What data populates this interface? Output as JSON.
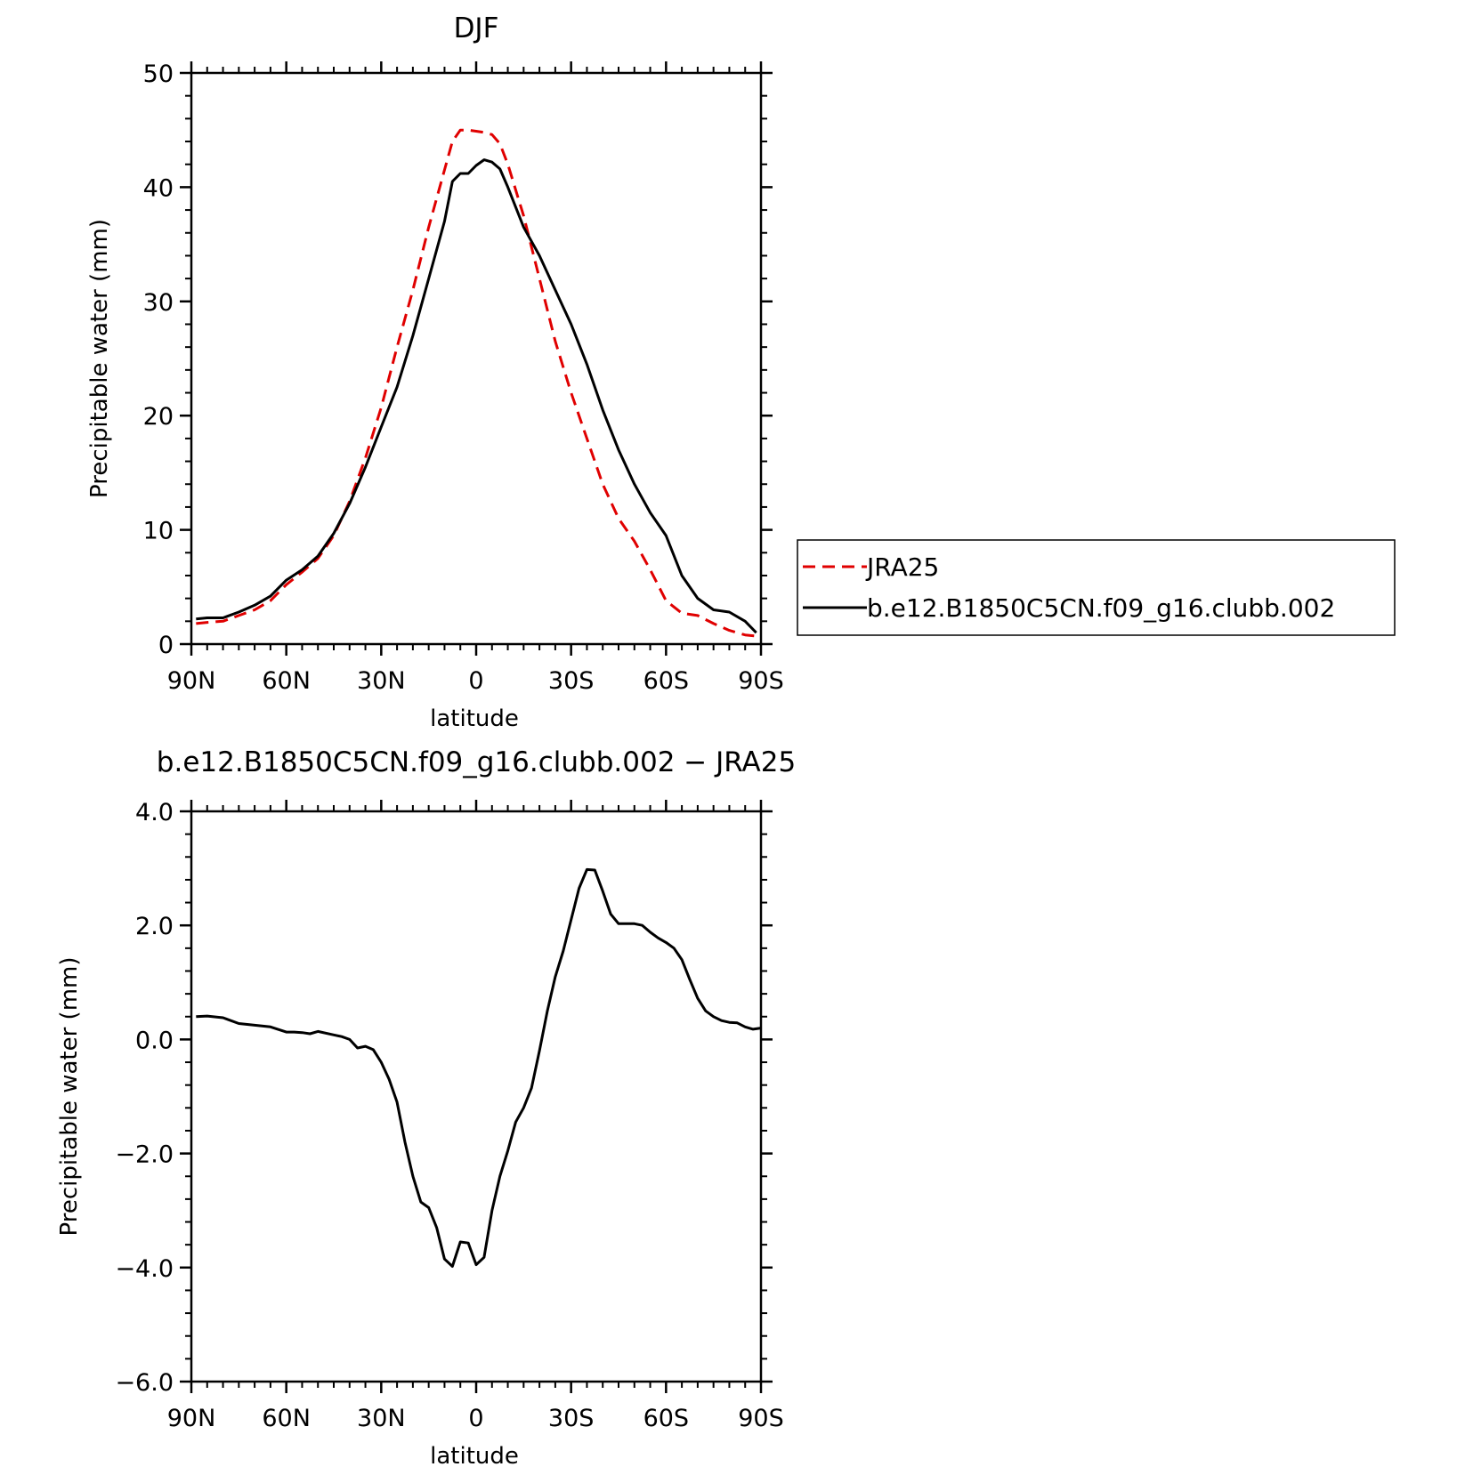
{
  "chart_data": [
    {
      "type": "line",
      "title": "DJF",
      "xlabel": "latitude",
      "ylabel": "Precipitable water (mm)",
      "xlim": [
        -90,
        90
      ],
      "ylim": [
        0,
        50
      ],
      "x_ticks": [
        -90,
        -60,
        -30,
        0,
        30,
        60,
        90
      ],
      "x_tick_labels": [
        "90N",
        "60N",
        "30N",
        "0",
        "30S",
        "60S",
        "90S"
      ],
      "y_ticks": [
        0,
        10,
        20,
        30,
        40,
        50
      ],
      "y_tick_labels": [
        "0",
        "10",
        "20",
        "30",
        "40",
        "50"
      ],
      "legend": "right",
      "series": [
        {
          "name": "JRA25",
          "color": "#e00000",
          "style": "dashed",
          "x": [
            -88.5,
            -85,
            -80,
            -75,
            -70,
            -65,
            -60,
            -55,
            -50,
            -45,
            -40,
            -35,
            -30,
            -25,
            -20,
            -15,
            -10,
            -7.5,
            -5,
            -2.5,
            0,
            2.5,
            5,
            7.5,
            10,
            15,
            20,
            25,
            30,
            35,
            40,
            45,
            50,
            55,
            60,
            65,
            70,
            75,
            80,
            85,
            88.5
          ],
          "y": [
            1.8,
            1.9,
            2.0,
            2.5,
            3.0,
            3.8,
            5.2,
            6.3,
            7.5,
            9.5,
            12.5,
            16.3,
            20.7,
            26.0,
            31.0,
            36.5,
            41.5,
            44.0,
            45.0,
            45.0,
            44.9,
            44.8,
            44.6,
            43.8,
            42.0,
            37.5,
            32.0,
            26.5,
            22.0,
            18.0,
            14.0,
            11.0,
            9.0,
            6.5,
            3.8,
            2.7,
            2.5,
            1.8,
            1.2,
            0.8,
            0.7
          ],
          "y_note": "series values follow ticks"
        },
        {
          "name": "b.e12.B1850C5CN.f09_g16.clubb.002",
          "color": "#000000",
          "style": "solid",
          "x": [
            -88.5,
            -85,
            -80,
            -75,
            -70,
            -65,
            -60,
            -55,
            -50,
            -45,
            -40,
            -35,
            -30,
            -25,
            -20,
            -15,
            -10,
            -7.5,
            -5,
            -2.5,
            0,
            2.5,
            5,
            7.5,
            10,
            15,
            20,
            25,
            30,
            35,
            40,
            45,
            50,
            55,
            60,
            65,
            70,
            75,
            80,
            85,
            88.5
          ],
          "y": [
            2.2,
            2.3,
            2.3,
            2.8,
            3.4,
            4.2,
            5.6,
            6.5,
            7.7,
            9.7,
            12.3,
            15.5,
            19.0,
            22.5,
            27.0,
            32.0,
            37.0,
            40.5,
            41.2,
            41.2,
            41.9,
            42.4,
            42.2,
            41.6,
            40.0,
            36.5,
            34.0,
            31.0,
            28.0,
            24.5,
            20.5,
            17.0,
            14.0,
            11.5,
            9.5,
            6.0,
            4.0,
            3.0,
            2.8,
            2.0,
            1.0
          ]
        }
      ]
    },
    {
      "type": "line",
      "title": "b.e12.B1850C5CN.f09_g16.clubb.002 − JRA25",
      "xlabel": "latitude",
      "ylabel": "Precipitable water (mm)",
      "xlim": [
        -90,
        90
      ],
      "ylim": [
        -6,
        4
      ],
      "x_ticks": [
        -90,
        -60,
        -30,
        0,
        30,
        60,
        90
      ],
      "x_tick_labels": [
        "90N",
        "60N",
        "30N",
        "0",
        "30S",
        "60S",
        "90S"
      ],
      "y_ticks": [
        -6,
        -4,
        -2,
        0,
        2,
        4
      ],
      "y_tick_labels": [
        "−6.0",
        "−4.0",
        "−2.0",
        "0.0",
        "2.0",
        "4.0"
      ],
      "series": [
        {
          "color": "#000000",
          "style": "solid",
          "x": [
            -88.5,
            -85,
            -80,
            -75,
            -70,
            -65,
            -60,
            -57.5,
            -55,
            -52.5,
            -50,
            -45,
            -42.5,
            -40,
            -37.5,
            -35,
            -32.5,
            -30,
            -27.5,
            -25,
            -22.5,
            -20,
            -17.5,
            -15,
            -12.5,
            -10,
            -7.5,
            -5,
            -2.5,
            0,
            2.5,
            5,
            7.5,
            10,
            12.5,
            15,
            17.5,
            20,
            22.5,
            25,
            27.5,
            30,
            32.5,
            35,
            37.5,
            40,
            42.5,
            45,
            47.5,
            50,
            52.5,
            55,
            57.5,
            60,
            62.5,
            65,
            67.5,
            70,
            72.5,
            75,
            77.5,
            80,
            82.5,
            85,
            87.5,
            90
          ],
          "y": [
            0.4,
            0.41,
            0.38,
            0.28,
            0.25,
            0.22,
            0.13,
            0.13,
            0.12,
            0.1,
            0.14,
            0.08,
            0.05,
            0.0,
            -0.15,
            -0.12,
            -0.18,
            -0.4,
            -0.7,
            -1.1,
            -1.8,
            -2.4,
            -2.85,
            -2.95,
            -3.3,
            -3.85,
            -3.98,
            -3.55,
            -3.57,
            -3.95,
            -3.82,
            -3.0,
            -2.4,
            -1.95,
            -1.45,
            -1.2,
            -0.85,
            -0.2,
            0.5,
            1.1,
            1.55,
            2.1,
            2.65,
            2.98,
            2.97,
            2.6,
            2.2,
            2.03,
            2.03,
            2.03,
            2.0,
            1.88,
            1.78,
            1.7,
            1.6,
            1.4,
            1.05,
            0.72,
            0.5,
            0.4,
            0.33,
            0.3,
            0.29,
            0.22,
            0.18,
            0.2
          ]
        }
      ]
    }
  ],
  "legend": {
    "items": [
      "JRA25",
      "b.e12.B1850C5CN.f09_g16.clubb.002"
    ]
  }
}
